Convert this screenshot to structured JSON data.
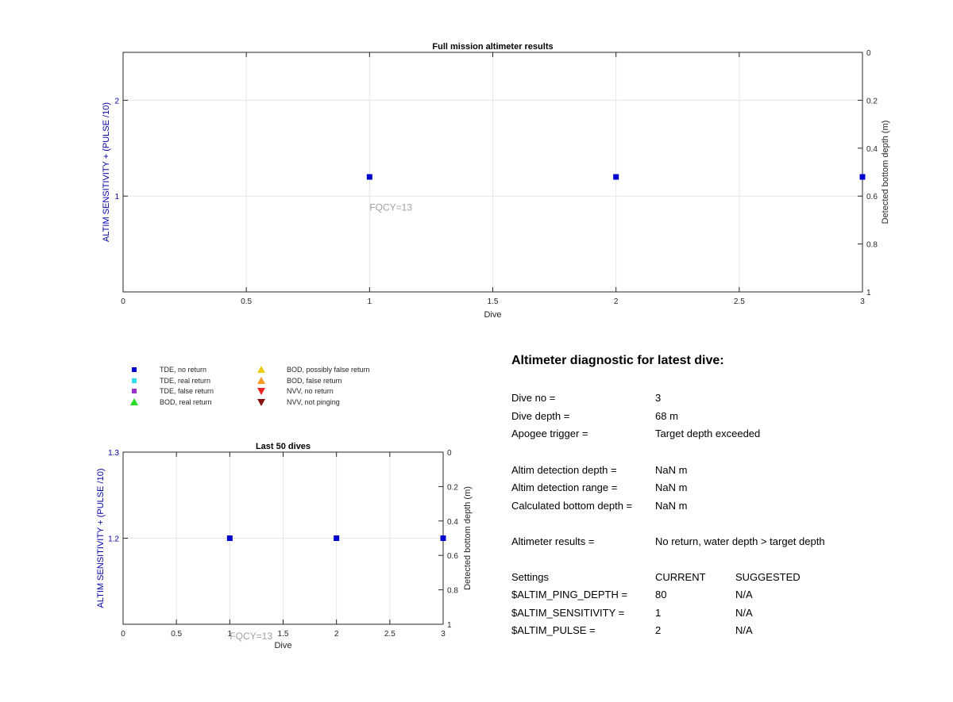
{
  "chart_data": [
    {
      "type": "scatter",
      "title": "Full mission altimeter results",
      "xlabel": "Dive",
      "ylabel": "ALTIM SENSITIVITY + (PULSE /10)",
      "y2label": "Detected bottom depth (m)",
      "xlim": [
        0,
        3
      ],
      "ylim": [
        0,
        2.5
      ],
      "y2lim": [
        0,
        1
      ],
      "y2_reversed": true,
      "x_ticks": [
        "0",
        "0.5",
        "1",
        "1.5",
        "2",
        "2.5",
        "3"
      ],
      "y_ticks": [
        "1",
        "2"
      ],
      "y2_ticks": [
        "0",
        "0.2",
        "0.4",
        "0.6",
        "0.8",
        "1"
      ],
      "grid": true,
      "series": [
        {
          "name": "TDE, no return",
          "color": "#0000cc",
          "marker": "square",
          "x": [
            1,
            2,
            3
          ],
          "y": [
            1.2,
            1.2,
            1.2
          ]
        }
      ],
      "annotations": [
        {
          "text": "FQCY=13",
          "x": 1,
          "y": 0.88,
          "color": "#a0a0a0"
        }
      ]
    },
    {
      "type": "scatter",
      "title": "Last 50 dives",
      "xlabel": "Dive",
      "ylabel": "ALTIM SENSITIVITY + (PULSE /10)",
      "y2label": "Detected bottom depth (m)",
      "xlim": [
        0,
        3
      ],
      "ylim": [
        1.1,
        1.3
      ],
      "y2lim": [
        0,
        1
      ],
      "y2_reversed": true,
      "x_ticks": [
        "0",
        "0.5",
        "1",
        "1.5",
        "2",
        "2.5",
        "3"
      ],
      "y_ticks": [
        "1.2",
        "1.3"
      ],
      "y2_ticks": [
        "0",
        "0.2",
        "0.4",
        "0.6",
        "0.8",
        "1"
      ],
      "grid": true,
      "series": [
        {
          "name": "TDE, no return",
          "color": "#0000cc",
          "marker": "square",
          "x": [
            1,
            2,
            3
          ],
          "y": [
            1.2,
            1.2,
            1.2
          ]
        }
      ],
      "annotations": [
        {
          "text": "FQCY=13",
          "x": 1,
          "y": 1.086,
          "color": "#a0a0a0"
        }
      ]
    }
  ],
  "legend": {
    "items": [
      {
        "label": "TDE, no return",
        "color": "#0000cc",
        "marker": "square"
      },
      {
        "label": "TDE, real return",
        "color": "#33ddee",
        "marker": "square"
      },
      {
        "label": "TDE, false return",
        "color": "#9933cc",
        "marker": "square"
      },
      {
        "label": "BOD, real return",
        "color": "#22dd22",
        "marker": "triangle-up"
      },
      {
        "label": "BOD, possibly false return",
        "color": "#eecc11",
        "marker": "triangle-up"
      },
      {
        "label": "BOD, false return",
        "color": "#ff9922",
        "marker": "triangle-up"
      },
      {
        "label": "NVV, no return",
        "color": "#ee2222",
        "marker": "triangle-down"
      },
      {
        "label": "NVV, not pinging",
        "color": "#881111",
        "marker": "triangle-down"
      }
    ]
  },
  "diagnostic": {
    "title": "Altimeter diagnostic for latest dive:",
    "rows": [
      {
        "label": "Dive no =",
        "value": "3"
      },
      {
        "label": "Dive depth =",
        "value": "68 m"
      },
      {
        "label": "Apogee trigger =",
        "value": "Target depth exceeded"
      },
      {
        "label": "Altim detection depth =",
        "value": "NaN m"
      },
      {
        "label": "Altim detection range =",
        "value": "NaN m"
      },
      {
        "label": "Calculated bottom depth =",
        "value": "NaN m"
      },
      {
        "label": "Altimeter results =",
        "value": "No return, water depth > target depth"
      }
    ],
    "settings_header": {
      "label": "Settings",
      "current": "CURRENT",
      "suggested": "SUGGESTED"
    },
    "settings": [
      {
        "label": "$ALTIM_PING_DEPTH =",
        "current": "80",
        "suggested": "N/A"
      },
      {
        "label": "$ALTIM_SENSITIVITY =",
        "current": "1",
        "suggested": "N/A"
      },
      {
        "label": "$ALTIM_PULSE =",
        "current": "2",
        "suggested": "N/A"
      }
    ]
  },
  "colors": {
    "axis_label_blue": "#0000aa",
    "grid": "#e6e6e6",
    "annotation_gray": "#a0a0a0"
  }
}
